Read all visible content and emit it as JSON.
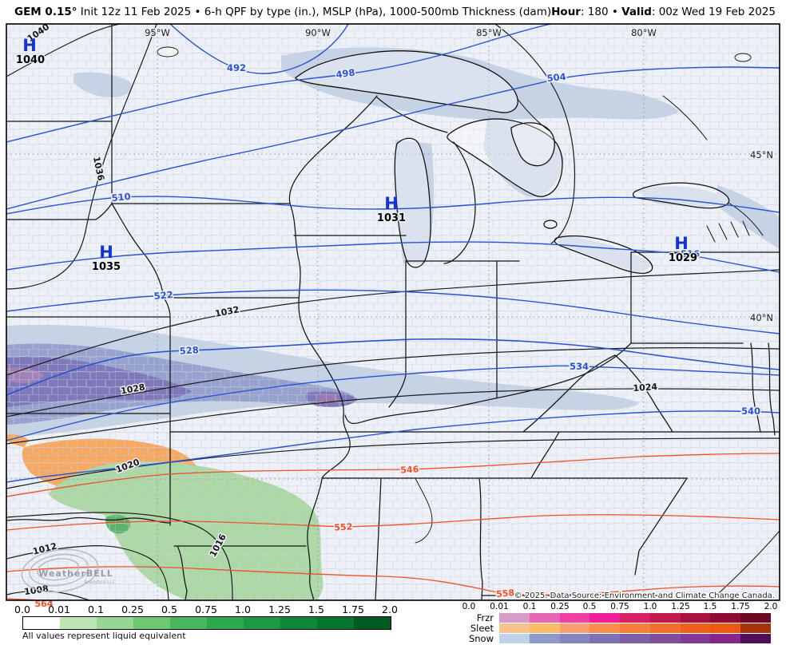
{
  "header": {
    "title_bold": "GEM 0.15°",
    "title_rest": " Init 12z 11 Feb 2025 • 6-h QPF by type (in.), MSLP (hPa), 1000-500mb Thickness (dam)",
    "hour_label": "Hour",
    "hour_value": ": 180",
    "separator": " • ",
    "valid_label": "Valid",
    "valid_value": ": 00z Wed 19 Feb 2025"
  },
  "map": {
    "lon_labels": [
      "95°W",
      "90°W",
      "85°W",
      "80°W"
    ],
    "lat_labels": [
      "45°N",
      "40°N"
    ],
    "highs": [
      {
        "symbol": "H",
        "value": "1040"
      },
      {
        "symbol": "H",
        "value": "1035"
      },
      {
        "symbol": "H",
        "value": "1031"
      },
      {
        "symbol": "H",
        "value": "1029"
      }
    ],
    "isobar_labels": [
      "1040",
      "1036",
      "1032",
      "1028",
      "1024",
      "1020",
      "1016",
      "1012",
      "1008"
    ],
    "thickness_labels_cold": [
      "492",
      "498",
      "504",
      "510",
      "516",
      "522",
      "528",
      "534",
      "540"
    ],
    "thickness_labels_warm": [
      "546",
      "552",
      "558",
      "564"
    ],
    "colors": {
      "isobar": "#1c1c1c",
      "thickness_cold": "#2a53d0",
      "thickness_warm": "#f0512a",
      "high_symbol": "#1433d6",
      "snow_light": "#c6d2e6",
      "snow_medium": "#97a2cf",
      "snow_dark": "#7f78ba",
      "sleet": "#f5a963",
      "rain_light": "#abd8a4",
      "rain_dark": "#5cb46c"
    },
    "watermark": {
      "brand": "WeatherBELL",
      "sub": "Analytics LLC"
    },
    "copyright": "© 2025. Data Source: Environment and Climate Change Canada."
  },
  "legend_qpf": {
    "ticks": [
      "0.0",
      "0.01",
      "0.1",
      "0.25",
      "0.5",
      "0.75",
      "1.0",
      "1.25",
      "1.5",
      "1.75",
      "2.0"
    ],
    "colors": [
      "#ffffff",
      "#bce4b4",
      "#97d693",
      "#6ec773",
      "#49b75e",
      "#2ca84e",
      "#1d9943",
      "#0f8738",
      "#06752e",
      "#005a22"
    ],
    "note": "All values represent liquid equivalent"
  },
  "legend_ptype": {
    "ticks": [
      "0.0",
      "0.01",
      "0.1",
      "0.25",
      "0.5",
      "0.75",
      "1.0",
      "1.25",
      "1.5",
      "1.75",
      "2.0"
    ],
    "rows": [
      {
        "label": "Frzr",
        "colors": [
          "#d79dc6",
          "#e668b4",
          "#ee3fa4",
          "#ef1d96",
          "#d81f63",
          "#c3184f",
          "#a81140",
          "#8e0c34",
          "#6b0725"
        ]
      },
      {
        "label": "Sleet",
        "colors": [
          "#f6c48c",
          "#fcbb66",
          "#fa9e6f",
          "#f88c4b",
          "#f67e39",
          "#f46d2a",
          "#f1601b",
          "#ef590f",
          "#a63209"
        ]
      },
      {
        "label": "Snow",
        "colors": [
          "#bed3ea",
          "#8d99cc",
          "#8286bf",
          "#7b72b3",
          "#7d5fa9",
          "#7f4c9e",
          "#823b94",
          "#85278a",
          "#4f0d5c"
        ]
      }
    ]
  }
}
